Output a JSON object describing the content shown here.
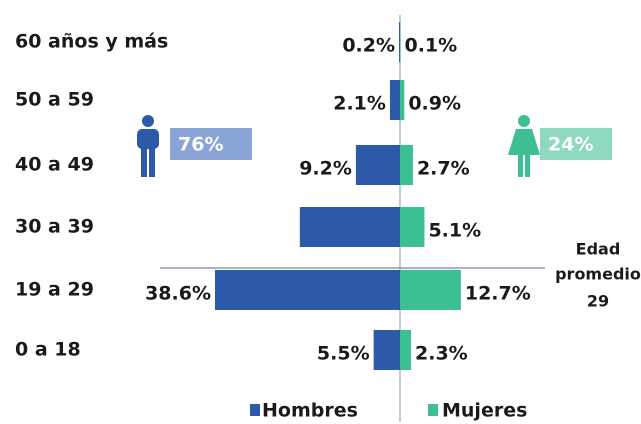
{
  "chart_data": {
    "type": "pyramid",
    "categories": [
      "60 años y más",
      "50 a 59",
      "40 a 49",
      "30 a 39",
      "19 a 29",
      "0 a 18"
    ],
    "xlim": [
      0,
      38.6
    ],
    "series": [
      {
        "name": "Hombres",
        "color": "#2c5aa8",
        "values": [
          0.2,
          2.1,
          9.2,
          20.9,
          38.6,
          5.5
        ],
        "value_labels": [
          "0.2%",
          "2.1%",
          "9.2%",
          null,
          "38.6%",
          "5.5%"
        ],
        "share": 76,
        "share_label": "76%",
        "share_color": "#8aa4d6"
      },
      {
        "name": "Mujeres",
        "color": "#3dbf95",
        "values": [
          0.1,
          0.9,
          2.7,
          5.1,
          12.7,
          2.3
        ],
        "value_labels": [
          "0.1%",
          "0.9%",
          "2.7%",
          "5.1%",
          "12.7%",
          "2.3%"
        ],
        "share": 24,
        "share_label": "24%",
        "share_color": "#8fd9bf"
      }
    ],
    "average_age_label": [
      "Edad",
      "promedio"
    ],
    "average_age": 29
  }
}
